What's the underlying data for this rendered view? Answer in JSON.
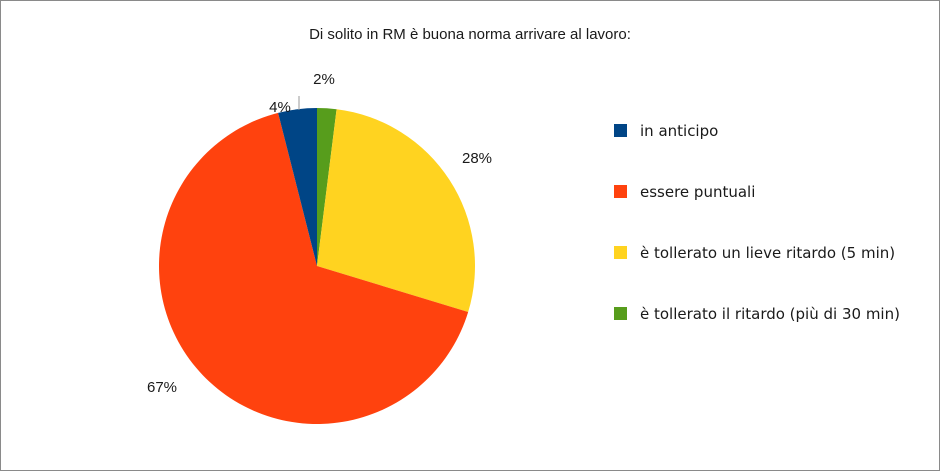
{
  "chart_data": {
    "type": "pie",
    "title": "Di solito in RM è buona norma arrivare al lavoro:",
    "slices": [
      {
        "label": "in anticipo",
        "value": 4,
        "display": "4%",
        "color": "#004586"
      },
      {
        "label": "essere puntuali",
        "value": 67,
        "display": "67%",
        "color": "#ff420e"
      },
      {
        "label": "è tollerato un lieve ritardo (5 min)",
        "value": 28,
        "display": "28%",
        "color": "#ffd320"
      },
      {
        "label": "è tollerato il ritardo (più di 30 min)",
        "value": 2,
        "display": "2%",
        "color": "#579d1c"
      }
    ],
    "legend_position": "right"
  }
}
